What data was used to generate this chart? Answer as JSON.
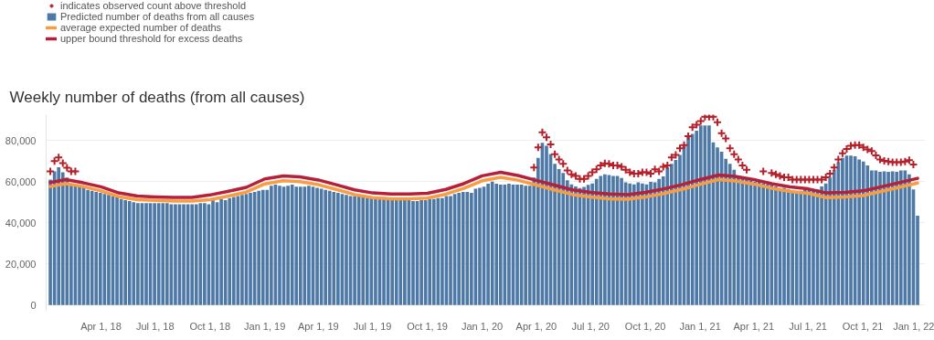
{
  "chart_data": {
    "type": "bar",
    "title": "Weekly number of deaths (from all causes)",
    "x": [
      "2018-01-06",
      "2018-01-13",
      "2018-01-20",
      "2018-01-27",
      "2018-02-03",
      "2018-02-10",
      "2018-02-17",
      "2018-02-24",
      "2018-03-03",
      "2018-03-10",
      "2018-03-17",
      "2018-03-24",
      "2018-03-31",
      "2018-04-07",
      "2018-04-14",
      "2018-04-21",
      "2018-04-28",
      "2018-05-05",
      "2018-05-12",
      "2018-05-19",
      "2018-05-26",
      "2018-06-02",
      "2018-06-09",
      "2018-06-16",
      "2018-06-23",
      "2018-06-30",
      "2018-07-07",
      "2018-07-14",
      "2018-07-21",
      "2018-07-28",
      "2018-08-04",
      "2018-08-11",
      "2018-08-18",
      "2018-08-25",
      "2018-09-01",
      "2018-09-08",
      "2018-09-15",
      "2018-09-22",
      "2018-09-29",
      "2018-10-06",
      "2018-10-13",
      "2018-10-20",
      "2018-10-27",
      "2018-11-03",
      "2018-11-10",
      "2018-11-17",
      "2018-11-24",
      "2018-12-01",
      "2018-12-08",
      "2018-12-15",
      "2018-12-22",
      "2018-12-29",
      "2019-01-05",
      "2019-01-12",
      "2019-01-19",
      "2019-01-26",
      "2019-02-02",
      "2019-02-09",
      "2019-02-16",
      "2019-02-23",
      "2019-03-02",
      "2019-03-09",
      "2019-03-16",
      "2019-03-23",
      "2019-03-30",
      "2019-04-06",
      "2019-04-13",
      "2019-04-20",
      "2019-04-27",
      "2019-05-04",
      "2019-05-11",
      "2019-05-18",
      "2019-05-25",
      "2019-06-01",
      "2019-06-08",
      "2019-06-15",
      "2019-06-22",
      "2019-06-29",
      "2019-07-06",
      "2019-07-13",
      "2019-07-20",
      "2019-07-27",
      "2019-08-03",
      "2019-08-10",
      "2019-08-17",
      "2019-08-24",
      "2019-08-31",
      "2019-09-07",
      "2019-09-14",
      "2019-09-21",
      "2019-09-28",
      "2019-10-05",
      "2019-10-12",
      "2019-10-19",
      "2019-10-26",
      "2019-11-02",
      "2019-11-09",
      "2019-11-16",
      "2019-11-23",
      "2019-11-30",
      "2019-12-07",
      "2019-12-14",
      "2019-12-21",
      "2019-12-28",
      "2020-01-04",
      "2020-01-11",
      "2020-01-18",
      "2020-01-25",
      "2020-02-01",
      "2020-02-08",
      "2020-02-15",
      "2020-02-22",
      "2020-02-29",
      "2020-03-07",
      "2020-03-14",
      "2020-03-21",
      "2020-03-28",
      "2020-04-04",
      "2020-04-11",
      "2020-04-18",
      "2020-04-25",
      "2020-05-02",
      "2020-05-09",
      "2020-05-16",
      "2020-05-23",
      "2020-05-30",
      "2020-06-06",
      "2020-06-13",
      "2020-06-20",
      "2020-06-27",
      "2020-07-04",
      "2020-07-11",
      "2020-07-18",
      "2020-07-25",
      "2020-08-01",
      "2020-08-08",
      "2020-08-15",
      "2020-08-22",
      "2020-08-29",
      "2020-09-05",
      "2020-09-12",
      "2020-09-19",
      "2020-09-26",
      "2020-10-03",
      "2020-10-10",
      "2020-10-17",
      "2020-10-24",
      "2020-10-31",
      "2020-11-07",
      "2020-11-14",
      "2020-11-21",
      "2020-11-28",
      "2020-12-05",
      "2020-12-12",
      "2020-12-19",
      "2020-12-26",
      "2021-01-02",
      "2021-01-09",
      "2021-01-16",
      "2021-01-23",
      "2021-01-30",
      "2021-02-06",
      "2021-02-13",
      "2021-02-20",
      "2021-02-27",
      "2021-03-06",
      "2021-03-13",
      "2021-03-20",
      "2021-03-27",
      "2021-04-03",
      "2021-04-10",
      "2021-04-17",
      "2021-04-24",
      "2021-05-01",
      "2021-05-08",
      "2021-05-15",
      "2021-05-22",
      "2021-05-29",
      "2021-06-05",
      "2021-06-12",
      "2021-06-19",
      "2021-06-26",
      "2021-07-03",
      "2021-07-10",
      "2021-07-17",
      "2021-07-24",
      "2021-07-31",
      "2021-08-07",
      "2021-08-14",
      "2021-08-21",
      "2021-08-28",
      "2021-09-04",
      "2021-09-11",
      "2021-09-18",
      "2021-09-25",
      "2021-10-02",
      "2021-10-09",
      "2021-10-16",
      "2021-10-23",
      "2021-10-30",
      "2021-11-06",
      "2021-11-13",
      "2021-11-20",
      "2021-11-27",
      "2021-12-04",
      "2021-12-11",
      "2021-12-18",
      "2021-12-25",
      "2022-01-01"
    ],
    "series": [
      {
        "name": "indicates observed count above threshold",
        "type": "scatter",
        "marker": "cross",
        "color": "#b51f2a",
        "values": [
          65000,
          70000,
          71800,
          69000,
          66700,
          65000,
          65000,
          null,
          null,
          null,
          null,
          null,
          null,
          null,
          null,
          null,
          null,
          null,
          null,
          null,
          null,
          null,
          null,
          null,
          null,
          null,
          null,
          null,
          null,
          null,
          null,
          null,
          null,
          null,
          null,
          null,
          null,
          null,
          null,
          null,
          null,
          null,
          null,
          null,
          null,
          null,
          null,
          null,
          null,
          null,
          null,
          null,
          null,
          null,
          null,
          null,
          null,
          null,
          null,
          null,
          null,
          null,
          null,
          null,
          null,
          null,
          null,
          null,
          null,
          null,
          null,
          null,
          null,
          null,
          null,
          null,
          null,
          null,
          null,
          null,
          null,
          null,
          null,
          null,
          null,
          null,
          null,
          null,
          null,
          null,
          null,
          null,
          null,
          null,
          null,
          null,
          null,
          null,
          null,
          null,
          null,
          null,
          null,
          null,
          null,
          null,
          null,
          null,
          null,
          null,
          null,
          null,
          null,
          null,
          null,
          null,
          66900,
          76600,
          84000,
          81500,
          78100,
          73300,
          70800,
          68600,
          65400,
          63500,
          62800,
          61300,
          61300,
          62800,
          64500,
          66000,
          67900,
          68900,
          68600,
          67900,
          67900,
          67200,
          65700,
          64500,
          63900,
          63900,
          64500,
          64500,
          63900,
          66000,
          65000,
          67200,
          67900,
          71800,
          73000,
          76200,
          77700,
          82100,
          86400,
          87600,
          89400,
          91500,
          91500,
          91500,
          88800,
          83500,
          81000,
          76200,
          73300,
          70800,
          67900,
          65700,
          null,
          null,
          null,
          65000,
          null,
          64200,
          63500,
          62800,
          62100,
          62100,
          61000,
          61000,
          61000,
          61000,
          61000,
          61000,
          61000,
          61000,
          62100,
          63900,
          66900,
          70800,
          73700,
          75900,
          77400,
          77700,
          77700,
          76600,
          75600,
          74800,
          72700,
          70800,
          70100,
          69800,
          69400,
          69400,
          69400,
          69800,
          70400,
          68300,
          null
        ]
      },
      {
        "name": "Predicted number of deaths from all causes",
        "color": "#4e79a7",
        "values": [
          61000,
          65000,
          67000,
          64500,
          62000,
          59000,
          58500,
          58500,
          58000,
          56000,
          55500,
          55000,
          54500,
          54000,
          53500,
          53000,
          52500,
          51500,
          51000,
          50500,
          50000,
          49500,
          49500,
          49500,
          49500,
          49500,
          49500,
          49500,
          49500,
          49000,
          49000,
          49000,
          49000,
          49000,
          49000,
          49000,
          49500,
          49500,
          49000,
          51000,
          50000,
          51500,
          51000,
          52000,
          52500,
          53000,
          53500,
          54000,
          54500,
          55000,
          55500,
          56000,
          56000,
          58000,
          58500,
          58000,
          57500,
          58000,
          58500,
          57500,
          57500,
          57500,
          58000,
          57500,
          57000,
          56500,
          56000,
          55500,
          55000,
          54500,
          54000,
          53500,
          53000,
          53000,
          53000,
          52500,
          52500,
          52000,
          52000,
          51500,
          51500,
          51500,
          51000,
          51000,
          51000,
          51000,
          51000,
          50500,
          50500,
          51000,
          51000,
          51500,
          51500,
          52000,
          52000,
          53000,
          53000,
          54000,
          54500,
          55000,
          55000,
          54500,
          56500,
          57000,
          57500,
          59000,
          60000,
          59000,
          58500,
          58500,
          59000,
          58500,
          58500,
          58500,
          58000,
          58000,
          62000,
          71500,
          78800,
          77400,
          73400,
          68600,
          66100,
          64200,
          60600,
          58700,
          57700,
          56900,
          57400,
          58400,
          59100,
          61300,
          62800,
          63500,
          63200,
          62800,
          62800,
          61800,
          59600,
          59100,
          58700,
          59600,
          59100,
          58700,
          59900,
          59600,
          61300,
          62500,
          66900,
          68600,
          70500,
          73000,
          77400,
          82500,
          83200,
          84700,
          87300,
          87300,
          87300,
          79100,
          76600,
          74500,
          71100,
          68600,
          65700,
          62800,
          62000,
          61300,
          60600,
          59900,
          59900,
          59100,
          58700,
          58400,
          57700,
          56900,
          57000,
          56200,
          55500,
          55200,
          55500,
          56200,
          56200,
          56200,
          56200,
          57700,
          59100,
          62000,
          65700,
          69400,
          71500,
          72600,
          72600,
          72300,
          70800,
          69800,
          67900,
          65400,
          65400,
          64700,
          65000,
          64700,
          65000,
          64700,
          65400,
          65400,
          63500,
          56200,
          43400
        ]
      },
      {
        "name": "average expected number of deaths",
        "type": "line",
        "color": "#f89d44",
        "x": [
          "2018-01-06",
          "2018-02-01",
          "2018-03-01",
          "2018-04-01",
          "2018-05-01",
          "2018-06-01",
          "2018-07-01",
          "2018-08-01",
          "2018-09-01",
          "2018-10-01",
          "2018-11-01",
          "2018-12-01",
          "2019-01-01",
          "2019-02-01",
          "2019-03-01",
          "2019-04-01",
          "2019-05-01",
          "2019-06-01",
          "2019-07-01",
          "2019-08-01",
          "2019-09-01",
          "2019-10-01",
          "2019-11-01",
          "2019-12-01",
          "2020-01-01",
          "2020-02-01",
          "2020-03-01",
          "2020-04-01",
          "2020-05-01",
          "2020-06-01",
          "2020-07-01",
          "2020-08-01",
          "2020-09-01",
          "2020-10-01",
          "2020-11-01",
          "2020-12-01",
          "2021-01-01",
          "2021-02-01",
          "2021-03-01",
          "2021-04-01",
          "2021-05-01",
          "2021-06-01",
          "2021-07-01",
          "2021-08-01",
          "2021-09-01",
          "2021-10-01",
          "2021-11-01",
          "2021-12-01",
          "2022-01-01"
        ],
        "values": [
          57600,
          59000,
          57700,
          55500,
          52700,
          51200,
          50900,
          50500,
          50500,
          51200,
          53000,
          54900,
          58900,
          60400,
          60000,
          58500,
          56200,
          53700,
          52200,
          51700,
          51700,
          52000,
          53900,
          56700,
          60400,
          62100,
          60700,
          58300,
          56000,
          53700,
          52500,
          51700,
          51400,
          52500,
          54200,
          56200,
          58700,
          61000,
          60300,
          58800,
          56800,
          55200,
          54300,
          52200,
          52500,
          53200,
          55200,
          57200,
          59300
        ]
      },
      {
        "name": "upper bound threshold for excess deaths",
        "type": "line",
        "color": "#b5203a",
        "x": [
          "2018-01-06",
          "2018-02-01",
          "2018-03-01",
          "2018-04-01",
          "2018-05-01",
          "2018-06-01",
          "2018-07-01",
          "2018-08-01",
          "2018-09-01",
          "2018-10-01",
          "2018-11-01",
          "2018-12-01",
          "2019-01-01",
          "2019-02-01",
          "2019-03-01",
          "2019-04-01",
          "2019-05-01",
          "2019-06-01",
          "2019-07-01",
          "2019-08-01",
          "2019-09-01",
          "2019-10-01",
          "2019-11-01",
          "2019-12-01",
          "2020-01-01",
          "2020-02-01",
          "2020-03-01",
          "2020-04-01",
          "2020-05-01",
          "2020-06-01",
          "2020-07-01",
          "2020-08-01",
          "2020-09-01",
          "2020-10-01",
          "2020-11-01",
          "2020-12-01",
          "2021-01-01",
          "2021-02-01",
          "2021-03-01",
          "2021-04-01",
          "2021-05-01",
          "2021-06-01",
          "2021-07-01",
          "2021-08-01",
          "2021-09-01",
          "2021-10-01",
          "2021-11-01",
          "2021-12-01",
          "2022-01-01"
        ],
        "values": [
          59600,
          61000,
          59500,
          57500,
          54500,
          53000,
          52600,
          52300,
          52300,
          53500,
          55300,
          57200,
          61300,
          62800,
          62300,
          60800,
          58500,
          56000,
          54500,
          54000,
          54000,
          54300,
          56200,
          59000,
          62800,
          64500,
          63000,
          60600,
          58300,
          56000,
          54800,
          54000,
          53700,
          54800,
          56500,
          58500,
          61000,
          63200,
          62500,
          61000,
          59000,
          57400,
          56500,
          54500,
          54800,
          55500,
          57500,
          59500,
          61600
        ]
      }
    ],
    "ylim": [
      -2500,
      92500
    ],
    "yticks": [
      0,
      {
        "value": 20000,
        "label": "20,000"
      },
      {
        "value": 40000,
        "label": "40,000"
      },
      {
        "value": 60000,
        "label": "60,000"
      },
      {
        "value": 80000,
        "label": "80,000"
      }
    ],
    "xlim": [
      "2017-12-30",
      "2022-01-14"
    ],
    "xticks": [
      {
        "value": "2018-04-01",
        "label": "Apr 1, 18"
      },
      {
        "value": "2018-07-01",
        "label": "Jul 1, 18"
      },
      {
        "value": "2018-10-01",
        "label": "Oct 1, 18"
      },
      {
        "value": "2019-01-01",
        "label": "Jan 1, 19"
      },
      {
        "value": "2019-04-01",
        "label": "Apr 1, 19"
      },
      {
        "value": "2019-07-01",
        "label": "Jul 1, 19"
      },
      {
        "value": "2019-10-01",
        "label": "Oct 1, 19"
      },
      {
        "value": "2020-01-01",
        "label": "Jan 1, 20"
      },
      {
        "value": "2020-04-01",
        "label": "Apr 1, 20"
      },
      {
        "value": "2020-07-01",
        "label": "Jul 1, 20"
      },
      {
        "value": "2020-10-01",
        "label": "Oct 1, 20"
      },
      {
        "value": "2021-01-01",
        "label": "Jan 1, 21"
      },
      {
        "value": "2021-04-01",
        "label": "Apr 1, 21"
      },
      {
        "value": "2021-07-01",
        "label": "Jul 1, 21"
      },
      {
        "value": "2021-10-01",
        "label": "Oct 1, 21"
      },
      {
        "value": "2022-01-01",
        "label": "Jan 1, 22"
      }
    ],
    "grid": "y",
    "legend": "top left"
  }
}
